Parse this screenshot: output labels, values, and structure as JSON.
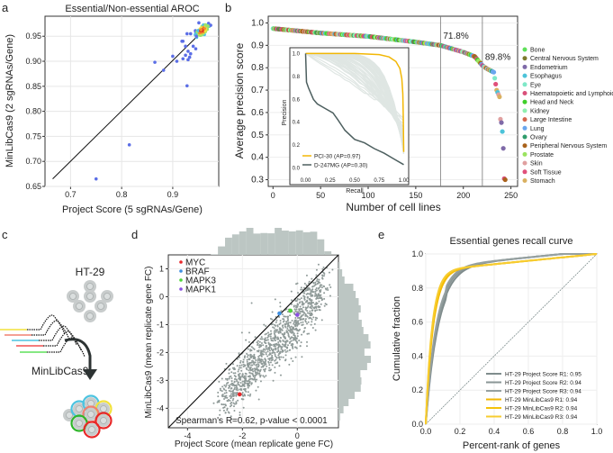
{
  "panel_labels": {
    "a": "a",
    "b": "b",
    "c": "c",
    "d": "d",
    "e": "e"
  },
  "illustration": {
    "cell_line": "HT-29",
    "library": "MinLibCas9"
  },
  "chart_data": [
    {
      "id": "a",
      "type": "scatter",
      "title": "Essential/Non-essential AROC",
      "xlabel": "Project Score (5 sgRNAs/Gene)",
      "ylabel": "MinLibCas9 (2 sgRNAs/Gene)",
      "xlim": [
        0.65,
        0.99
      ],
      "ylim": [
        0.65,
        0.99
      ],
      "xticks": [
        {
          "v": 0.7,
          "label": "0.7"
        },
        {
          "v": 0.8,
          "label": "0.8"
        },
        {
          "v": 0.9,
          "label": "0.9"
        }
      ],
      "yticks": [
        {
          "v": 0.65,
          "label": "0.65"
        },
        {
          "v": 0.7,
          "label": "0.70"
        },
        {
          "v": 0.75,
          "label": "0.75"
        },
        {
          "v": 0.8,
          "label": "0.80"
        },
        {
          "v": 0.85,
          "label": "0.85"
        },
        {
          "v": 0.9,
          "label": "0.90"
        },
        {
          "v": 0.95,
          "label": "0.95"
        }
      ],
      "diagonal": [
        [
          0.665,
          0.665
        ],
        [
          0.97,
          0.972
        ]
      ],
      "outliers": [
        [
          0.75,
          0.665
        ],
        [
          0.815,
          0.733
        ],
        [
          0.928,
          0.851
        ],
        [
          0.865,
          0.898
        ],
        [
          0.882,
          0.882
        ],
        [
          0.9,
          0.91
        ],
        [
          0.908,
          0.9
        ],
        [
          0.918,
          0.94
        ],
        [
          0.92,
          0.905
        ],
        [
          0.925,
          0.912
        ],
        [
          0.928,
          0.955
        ],
        [
          0.93,
          0.903
        ],
        [
          0.933,
          0.908
        ],
        [
          0.935,
          0.915
        ],
        [
          0.925,
          0.93
        ],
        [
          0.94,
          0.93
        ],
        [
          0.945,
          0.925
        ],
        [
          0.92,
          0.94
        ],
        [
          0.935,
          0.955
        ],
        [
          0.945,
          0.958
        ],
        [
          0.93,
          0.92
        ]
      ],
      "cluster": {
        "center": [
          0.958,
          0.962
        ],
        "n": 260
      },
      "density_colors": [
        "#5b6ee6",
        "#4fc1e0",
        "#9be36a",
        "#f2e23c",
        "#f28a2c",
        "#d7191c"
      ]
    },
    {
      "id": "b",
      "type": "scatter",
      "xlabel": "Number of cell lines",
      "ylabel": "Average precision score",
      "xlim": [
        -5,
        257
      ],
      "ylim": [
        0.27,
        1.03
      ],
      "xticks": [
        0,
        50,
        100,
        150,
        200,
        250
      ],
      "yticks": [
        {
          "v": 0.3,
          "label": "0.3"
        },
        {
          "v": 0.4,
          "label": "0.4"
        },
        {
          "v": 0.5,
          "label": "0.5"
        },
        {
          "v": 0.6,
          "label": "0.6"
        },
        {
          "v": 0.7,
          "label": "0.7"
        },
        {
          "v": 0.8,
          "label": "0.8"
        },
        {
          "v": 0.9,
          "label": "0.9"
        },
        {
          "v": 1.0,
          "label": "1.0"
        }
      ],
      "n_cell_lines": 245,
      "ap_curve_anchors": [
        [
          0,
          0.975
        ],
        [
          50,
          0.955
        ],
        [
          100,
          0.94
        ],
        [
          150,
          0.915
        ],
        [
          176,
          0.9
        ],
        [
          200,
          0.87
        ],
        [
          212,
          0.85
        ],
        [
          220,
          0.81
        ],
        [
          225,
          0.795
        ],
        [
          232,
          0.78
        ],
        [
          235,
          0.7
        ],
        [
          238,
          0.67
        ],
        [
          239,
          0.57
        ],
        [
          240,
          0.555
        ],
        [
          241,
          0.515
        ],
        [
          242,
          0.44
        ],
        [
          243,
          0.305
        ],
        [
          244,
          0.3
        ]
      ],
      "thresholds": [
        {
          "x": 176,
          "label": "71.8%"
        },
        {
          "x": 220,
          "label": "89.8%"
        }
      ],
      "legend": [
        {
          "name": "Bone",
          "color": "#5fe05a"
        },
        {
          "name": "Central Nervous System",
          "color": "#7d7a2c"
        },
        {
          "name": "Endometrium",
          "color": "#7f6aa8"
        },
        {
          "name": "Esophagus",
          "color": "#4cc3d9"
        },
        {
          "name": "Eye",
          "color": "#7fe8c8"
        },
        {
          "name": "Haematopoietic and Lymphoid",
          "color": "#d9507a"
        },
        {
          "name": "Head and Neck",
          "color": "#3fcf2a"
        },
        {
          "name": "Kidney",
          "color": "#8ff0b0"
        },
        {
          "name": "Large Intestine",
          "color": "#d4674d"
        },
        {
          "name": "Lung",
          "color": "#6aa6ee"
        },
        {
          "name": "Ovary",
          "color": "#2f9c6c"
        },
        {
          "name": "Peripheral Nervous System",
          "color": "#a9621b"
        },
        {
          "name": "Prostate",
          "color": "#9be360"
        },
        {
          "name": "Skin",
          "color": "#e0a0a0"
        },
        {
          "name": "Soft Tissue",
          "color": "#e0507a"
        },
        {
          "name": "Stomach",
          "color": "#d9b060"
        }
      ],
      "inset": {
        "type": "line",
        "xlabel": "Recall",
        "ylabel": "Precision",
        "xticks": [
          {
            "v": 0,
            "label": "0.00"
          },
          {
            "v": 0.25,
            "label": "0.25"
          },
          {
            "v": 0.5,
            "label": "0.50"
          },
          {
            "v": 0.75,
            "label": "0.75"
          },
          {
            "v": 1,
            "label": "1.00"
          }
        ],
        "yticks": [
          {
            "v": 0,
            "label": "0.0"
          },
          {
            "v": 0.2,
            "label": "0.2"
          },
          {
            "v": 0.4,
            "label": "0.4"
          },
          {
            "v": 0.6,
            "label": "0.6"
          },
          {
            "v": 0.8,
            "label": "0.8"
          },
          {
            "v": 1,
            "label": "1.0"
          }
        ],
        "series": [
          {
            "name": "PCI-30 (AP=0.97)",
            "color": "#f2b705",
            "points": [
              [
                0,
                1
              ],
              [
                0.5,
                1
              ],
              [
                0.75,
                0.99
              ],
              [
                0.85,
                0.97
              ],
              [
                0.92,
                0.93
              ],
              [
                0.96,
                0.87
              ],
              [
                0.98,
                0.78
              ],
              [
                0.99,
                0.65
              ],
              [
                0.995,
                0.45
              ],
              [
                1,
                0.14
              ]
            ]
          },
          {
            "name": "D-247MG (AP=0.30)",
            "color": "#4d5f5f",
            "points": [
              [
                0,
                1
              ],
              [
                0.01,
                0.75
              ],
              [
                0.03,
                0.7
              ],
              [
                0.08,
                0.6
              ],
              [
                0.12,
                0.56
              ],
              [
                0.2,
                0.52
              ],
              [
                0.28,
                0.48
              ],
              [
                0.33,
                0.42
              ],
              [
                0.4,
                0.33
              ],
              [
                0.5,
                0.25
              ],
              [
                0.6,
                0.22
              ],
              [
                0.7,
                0.17
              ],
              [
                0.8,
                0.13
              ],
              [
                0.9,
                0.08
              ],
              [
                1,
                0.03
              ]
            ]
          }
        ]
      }
    },
    {
      "id": "d",
      "type": "scatter",
      "xlabel": "Project Score (mean replicate gene FC)",
      "ylabel": "MinLibCas9 (mean replicate gene FC)",
      "xlim": [
        -4.7,
        1.5
      ],
      "ylim": [
        -4.7,
        1.5
      ],
      "xticks": [
        -4,
        -2,
        0
      ],
      "yticks": [
        1,
        0,
        -1,
        -2,
        -3,
        -4
      ],
      "annotation": "Spearman's R=0.62, p-value < 0.0001",
      "n_points": 1200,
      "highlighted": [
        {
          "name": "MYC",
          "color": "#e8282b",
          "x": -2.1,
          "y": -3.5
        },
        {
          "name": "BRAF",
          "color": "#3f8fe0",
          "x": -0.65,
          "y": -0.6
        },
        {
          "name": "MAPK3",
          "color": "#4fd63a",
          "x": -0.25,
          "y": -0.5
        },
        {
          "name": "MAPK1",
          "color": "#8a4fe0",
          "x": 0.0,
          "y": -0.65
        }
      ]
    },
    {
      "id": "e",
      "type": "line",
      "title": "Essential genes recall curve",
      "xlabel": "Percent-rank of genes",
      "ylabel": "Cumulative fraction",
      "xlim": [
        0,
        1
      ],
      "ylim": [
        0,
        1
      ],
      "xticks": [
        {
          "v": 0,
          "label": "0.0"
        },
        {
          "v": 0.2,
          "label": "0.2"
        },
        {
          "v": 0.4,
          "label": "0.4"
        },
        {
          "v": 0.6,
          "label": "0.6"
        },
        {
          "v": 0.8,
          "label": "0.8"
        },
        {
          "v": 1,
          "label": "1.0"
        }
      ],
      "yticks": [
        {
          "v": 0,
          "label": "0.0"
        },
        {
          "v": 0.2,
          "label": "0.2"
        },
        {
          "v": 0.4,
          "label": "0.4"
        },
        {
          "v": 0.6,
          "label": "0.6"
        },
        {
          "v": 0.8,
          "label": "0.8"
        },
        {
          "v": 1,
          "label": "1.0"
        }
      ],
      "series": [
        {
          "name": "HT-29 Project Score R1: 0.95",
          "color": "#7f8c8c",
          "auc": 0.95
        },
        {
          "name": "HT-29 Project Score R2: 0.94",
          "color": "#8a9696",
          "auc": 0.94
        },
        {
          "name": "HT-29 Project Score R3: 0.94",
          "color": "#95a0a0",
          "auc": 0.94
        },
        {
          "name": "HT-29 MinLibCas9 R1: 0.94",
          "color": "#f2b705",
          "auc": 0.94
        },
        {
          "name": "HT-29 MinLibCas9 R2: 0.94",
          "color": "#f5c20a",
          "auc": 0.94
        },
        {
          "name": "HT-29  MinLibCas9 R3: 0.94",
          "color": "#f7cc30",
          "auc": 0.94
        }
      ]
    }
  ]
}
